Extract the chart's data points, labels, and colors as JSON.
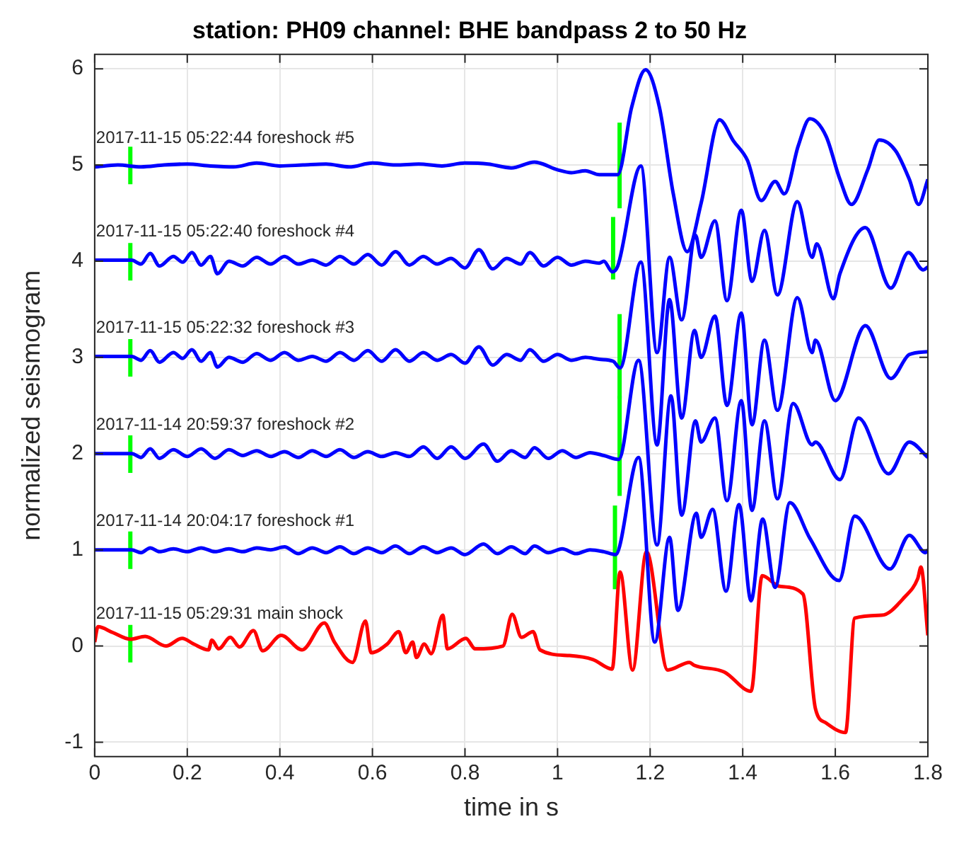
{
  "chart_data": {
    "type": "line",
    "title": "station: PH09 channel: BHE bandpass 2 to 50 Hz",
    "xlabel": "time in s",
    "ylabel": "normalized seismogram",
    "xlim": [
      0,
      1.8
    ],
    "xticks": [
      0,
      0.2,
      0.4,
      0.6,
      0.8,
      1,
      1.2,
      1.4,
      1.6,
      1.8
    ],
    "ylim": [
      -1.15,
      6.15
    ],
    "yticks": [
      -1,
      0,
      1,
      2,
      3,
      4,
      5,
      6
    ],
    "grid": true,
    "legend": false,
    "marker": "none",
    "line_style": "solid",
    "annotations": [
      "2017-11-15 05:22:44 foreshock #5",
      "2017-11-15 05:22:40 foreshock #4",
      "2017-11-15 05:22:32 foreshock #3",
      "2017-11-14 20:59:37 foreshock #2",
      "2017-11-14 20:04:17 foreshock #1",
      "2017-11-15 05:29:31 main shock"
    ],
    "series": [
      {
        "color": "#0000ff",
        "x": [
          0,
          0.05,
          0.1,
          0.15,
          0.2,
          0.25,
          0.3,
          0.35,
          0.4,
          0.45,
          0.5,
          0.55,
          0.6,
          0.65,
          0.7,
          0.75,
          0.8,
          0.85,
          0.9,
          0.95,
          1.0,
          1.03,
          1.06,
          1.09,
          1.13,
          1.16,
          1.19,
          1.22,
          1.25,
          1.28,
          1.31,
          1.35,
          1.38,
          1.41,
          1.44,
          1.47,
          1.49,
          1.52,
          1.545,
          1.58,
          1.61,
          1.635,
          1.67,
          1.695,
          1.73,
          1.76,
          1.78,
          1.8
        ],
        "values": [
          4.98,
          5.0,
          4.98,
          5.0,
          5.01,
          4.99,
          4.98,
          5.02,
          4.99,
          5.0,
          5.01,
          4.98,
          5.02,
          5.0,
          5.01,
          4.99,
          5.02,
          5.01,
          4.97,
          5.03,
          4.95,
          4.92,
          4.94,
          4.9,
          4.9,
          5.6,
          5.99,
          5.6,
          4.7,
          4.1,
          4.6,
          5.47,
          5.25,
          5.05,
          4.63,
          4.83,
          4.7,
          5.2,
          5.48,
          5.3,
          4.85,
          4.59,
          4.95,
          5.26,
          5.15,
          4.85,
          4.59,
          4.85
        ]
      },
      {
        "color": "#0000ff",
        "x": [
          0,
          0.08,
          0.1,
          0.12,
          0.14,
          0.17,
          0.19,
          0.21,
          0.23,
          0.25,
          0.265,
          0.29,
          0.32,
          0.35,
          0.38,
          0.41,
          0.44,
          0.47,
          0.5,
          0.53,
          0.56,
          0.59,
          0.62,
          0.65,
          0.68,
          0.71,
          0.74,
          0.77,
          0.8,
          0.83,
          0.86,
          0.89,
          0.92,
          0.94,
          0.97,
          1.0,
          1.03,
          1.06,
          1.09,
          1.1,
          1.118,
          1.13,
          1.18,
          1.215,
          1.242,
          1.268,
          1.298,
          1.31,
          1.34,
          1.366,
          1.397,
          1.42,
          1.447,
          1.475,
          1.518,
          1.55,
          1.56,
          1.596,
          1.61,
          1.665,
          1.72,
          1.758,
          1.79,
          1.8
        ],
        "values": [
          4.01,
          4.01,
          3.97,
          4.08,
          3.95,
          4.05,
          3.99,
          4.09,
          3.96,
          4.05,
          3.87,
          4.0,
          3.95,
          4.04,
          3.97,
          4.05,
          3.97,
          4.01,
          3.96,
          4.05,
          3.97,
          4.07,
          3.96,
          4.1,
          3.96,
          4.05,
          3.97,
          4.03,
          3.93,
          4.12,
          3.92,
          4.03,
          3.97,
          4.09,
          3.95,
          4.04,
          3.96,
          4.0,
          3.98,
          4.0,
          3.89,
          3.95,
          4.99,
          3.05,
          4.04,
          3.39,
          4.27,
          4.04,
          4.42,
          3.59,
          4.53,
          3.79,
          4.32,
          3.65,
          4.62,
          4.04,
          4.18,
          3.61,
          3.87,
          4.35,
          3.72,
          4.09,
          3.91,
          3.94
        ]
      },
      {
        "color": "#0000ff",
        "x": [
          0,
          0.08,
          0.1,
          0.12,
          0.14,
          0.17,
          0.19,
          0.21,
          0.23,
          0.25,
          0.265,
          0.29,
          0.32,
          0.35,
          0.38,
          0.41,
          0.44,
          0.47,
          0.5,
          0.53,
          0.56,
          0.59,
          0.62,
          0.65,
          0.68,
          0.71,
          0.74,
          0.77,
          0.8,
          0.83,
          0.86,
          0.89,
          0.92,
          0.94,
          0.97,
          1.0,
          1.03,
          1.06,
          1.09,
          1.12,
          1.135,
          1.18,
          1.215,
          1.242,
          1.268,
          1.296,
          1.31,
          1.34,
          1.366,
          1.397,
          1.42,
          1.447,
          1.475,
          1.518,
          1.55,
          1.557,
          1.6,
          1.665,
          1.72,
          1.76,
          1.8
        ],
        "values": [
          3.01,
          3.01,
          2.97,
          3.07,
          2.95,
          3.05,
          2.99,
          3.08,
          2.96,
          3.05,
          2.9,
          3.0,
          2.95,
          3.04,
          2.97,
          3.05,
          2.97,
          3.01,
          2.96,
          3.05,
          2.97,
          3.07,
          2.96,
          3.08,
          2.96,
          3.05,
          2.97,
          3.03,
          2.94,
          3.11,
          2.92,
          3.03,
          2.97,
          3.08,
          2.96,
          3.03,
          2.97,
          3.0,
          2.98,
          2.96,
          2.89,
          3.99,
          2.09,
          3.6,
          2.37,
          3.28,
          3.0,
          3.43,
          2.5,
          3.46,
          2.3,
          3.18,
          2.45,
          3.62,
          3.05,
          3.18,
          2.55,
          3.33,
          2.78,
          3.03,
          3.06
        ]
      },
      {
        "color": "#0000ff",
        "x": [
          0,
          0.08,
          0.1,
          0.12,
          0.14,
          0.17,
          0.2,
          0.23,
          0.26,
          0.29,
          0.32,
          0.35,
          0.38,
          0.41,
          0.44,
          0.47,
          0.5,
          0.53,
          0.56,
          0.59,
          0.62,
          0.65,
          0.68,
          0.71,
          0.74,
          0.77,
          0.8,
          0.84,
          0.87,
          0.9,
          0.93,
          0.95,
          0.98,
          1.01,
          1.04,
          1.07,
          1.1,
          1.132,
          1.175,
          1.215,
          1.245,
          1.268,
          1.298,
          1.31,
          1.34,
          1.366,
          1.397,
          1.42,
          1.447,
          1.475,
          1.509,
          1.55,
          1.557,
          1.61,
          1.65,
          1.715,
          1.76,
          1.8
        ],
        "values": [
          2.0,
          2.0,
          1.96,
          2.05,
          1.95,
          2.04,
          1.97,
          2.05,
          1.95,
          2.04,
          1.98,
          2.03,
          1.97,
          2.02,
          1.96,
          2.03,
          1.97,
          2.04,
          1.96,
          2.02,
          1.97,
          2.01,
          1.97,
          2.07,
          1.95,
          2.07,
          1.95,
          2.1,
          1.92,
          2.03,
          1.96,
          2.06,
          1.95,
          2.03,
          1.96,
          2.01,
          1.98,
          1.94,
          2.97,
          1.05,
          2.6,
          1.36,
          2.34,
          2.12,
          2.37,
          1.51,
          2.55,
          1.41,
          2.34,
          1.53,
          2.52,
          2.09,
          2.12,
          1.73,
          2.37,
          1.79,
          2.12,
          1.96
        ]
      },
      {
        "color": "#0000ff",
        "x": [
          0,
          0.08,
          0.1,
          0.12,
          0.14,
          0.17,
          0.2,
          0.23,
          0.26,
          0.29,
          0.32,
          0.35,
          0.38,
          0.41,
          0.44,
          0.47,
          0.5,
          0.53,
          0.56,
          0.59,
          0.62,
          0.65,
          0.68,
          0.71,
          0.74,
          0.77,
          0.8,
          0.84,
          0.87,
          0.9,
          0.93,
          0.95,
          0.98,
          1.01,
          1.04,
          1.07,
          1.1,
          1.125,
          1.175,
          1.21,
          1.242,
          1.26,
          1.3,
          1.31,
          1.335,
          1.364,
          1.392,
          1.418,
          1.443,
          1.47,
          1.502,
          1.545,
          1.608,
          1.642,
          1.718,
          1.76,
          1.795,
          1.8
        ],
        "values": [
          1.0,
          1.0,
          0.97,
          1.02,
          0.98,
          1.01,
          0.98,
          1.02,
          0.98,
          1.01,
          0.98,
          1.02,
          1.0,
          1.03,
          0.96,
          1.02,
          0.97,
          1.03,
          0.96,
          1.02,
          0.97,
          1.04,
          0.96,
          1.03,
          0.97,
          1.02,
          0.95,
          1.06,
          0.96,
          1.03,
          0.96,
          1.04,
          0.97,
          1.01,
          0.96,
          1.0,
          0.98,
          0.95,
          1.96,
          0.04,
          1.13,
          0.37,
          1.38,
          1.13,
          1.42,
          0.57,
          1.47,
          0.47,
          1.32,
          0.61,
          1.49,
          1.12,
          0.68,
          1.35,
          0.8,
          1.15,
          0.97,
          1.0
        ]
      },
      {
        "color": "#ff0000",
        "x": [
          0,
          0.007,
          0.039,
          0.077,
          0.109,
          0.154,
          0.189,
          0.214,
          0.246,
          0.253,
          0.268,
          0.293,
          0.313,
          0.343,
          0.363,
          0.403,
          0.448,
          0.496,
          0.518,
          0.557,
          0.585,
          0.597,
          0.632,
          0.657,
          0.672,
          0.687,
          0.695,
          0.712,
          0.727,
          0.752,
          0.762,
          0.802,
          0.822,
          0.882,
          0.902,
          0.922,
          0.947,
          0.962,
          1.026,
          1.076,
          1.118,
          1.135,
          1.162,
          1.192,
          1.238,
          1.285,
          1.295,
          1.36,
          1.418,
          1.442,
          1.48,
          1.53,
          1.557,
          1.58,
          1.622,
          1.642,
          1.7,
          1.75,
          1.778,
          1.785,
          1.8
        ],
        "values": [
          0.04,
          0.2,
          0.14,
          0.07,
          0.1,
          0.0,
          0.08,
          0.02,
          -0.04,
          0.06,
          -0.03,
          0.09,
          -0.01,
          0.16,
          -0.05,
          0.11,
          -0.04,
          0.24,
          0.04,
          -0.17,
          0.26,
          -0.07,
          0.02,
          0.15,
          -0.07,
          0.04,
          -0.12,
          0.02,
          -0.08,
          0.32,
          -0.03,
          0.08,
          -0.03,
          0.0,
          0.33,
          0.09,
          0.15,
          -0.04,
          -0.1,
          -0.14,
          -0.24,
          0.77,
          -0.25,
          0.98,
          -0.25,
          -0.17,
          -0.2,
          -0.27,
          -0.47,
          0.73,
          0.62,
          0.54,
          -0.65,
          -0.8,
          -0.9,
          0.29,
          0.32,
          0.51,
          0.7,
          0.82,
          0.11
        ]
      },
      {
        "type": "line",
        "color": "#00ff00",
        "x": [
          0.077,
          0.077
        ],
        "values": [
          4.8,
          5.19
        ]
      },
      {
        "type": "line",
        "color": "#00ff00",
        "x": [
          1.134,
          1.134
        ],
        "values": [
          4.55,
          5.44
        ]
      },
      {
        "type": "line",
        "color": "#00ff00",
        "x": [
          0.077,
          0.077
        ],
        "values": [
          3.8,
          4.19
        ]
      },
      {
        "type": "line",
        "color": "#00ff00",
        "x": [
          1.12,
          1.12
        ],
        "values": [
          3.81,
          4.46
        ]
      },
      {
        "type": "line",
        "color": "#00ff00",
        "x": [
          0.077,
          0.077
        ],
        "values": [
          2.8,
          3.19
        ]
      },
      {
        "type": "line",
        "color": "#00ff00",
        "x": [
          1.134,
          1.134
        ],
        "values": [
          2.57,
          3.45
        ]
      },
      {
        "type": "line",
        "color": "#00ff00",
        "x": [
          0.077,
          0.077
        ],
        "values": [
          1.8,
          2.19
        ]
      },
      {
        "type": "line",
        "color": "#00ff00",
        "x": [
          1.134,
          1.134
        ],
        "values": [
          1.56,
          2.6
        ]
      },
      {
        "type": "line",
        "color": "#00ff00",
        "x": [
          0.077,
          0.077
        ],
        "values": [
          0.8,
          1.19
        ]
      },
      {
        "type": "line",
        "color": "#00ff00",
        "x": [
          1.124,
          1.124
        ],
        "values": [
          0.59,
          1.46
        ]
      },
      {
        "type": "line",
        "color": "#00ff00",
        "x": [
          0.077,
          0.077
        ],
        "values": [
          -0.17,
          0.22
        ]
      }
    ]
  }
}
